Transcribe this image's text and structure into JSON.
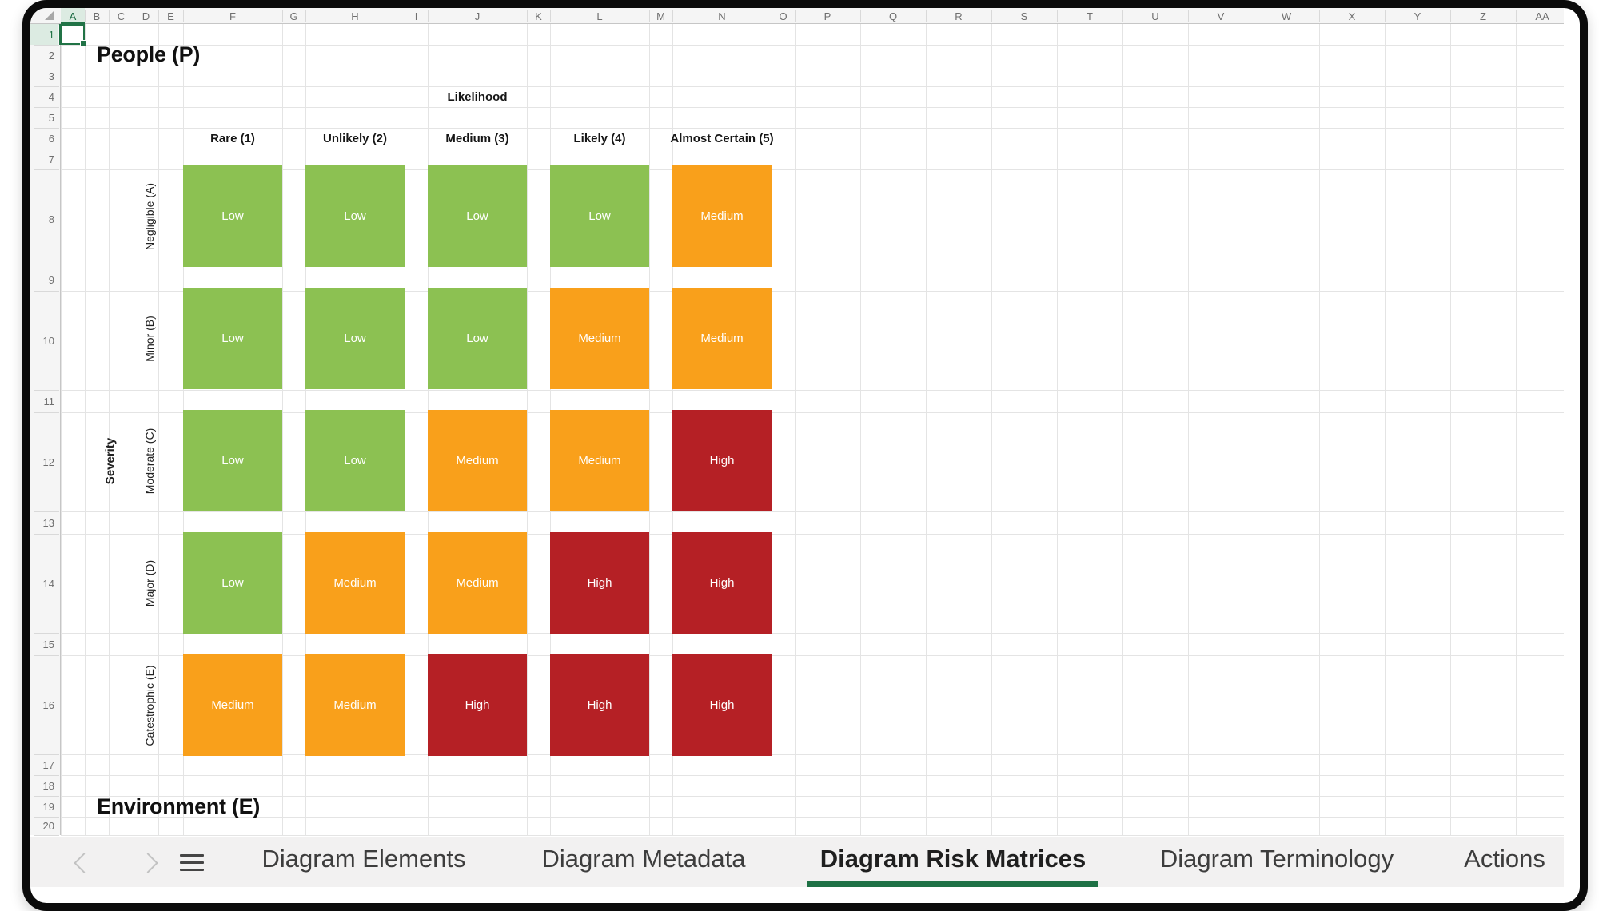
{
  "grid": {
    "column_letters": [
      "A",
      "B",
      "C",
      "D",
      "E",
      "F",
      "G",
      "H",
      "I",
      "J",
      "K",
      "L",
      "M",
      "N",
      "O",
      "P",
      "Q",
      "R",
      "S",
      "T",
      "U",
      "V",
      "W",
      "X",
      "Y",
      "Z",
      "AA"
    ],
    "row_numbers": [
      "1",
      "2",
      "3",
      "4",
      "5",
      "6",
      "7",
      "8",
      "9",
      "10",
      "11",
      "12",
      "13",
      "14",
      "15",
      "16",
      "17",
      "18",
      "19",
      "20"
    ],
    "selected_cell": "A1",
    "selected_column": "A",
    "selected_row": "1"
  },
  "sections": {
    "people": "People (P)",
    "environment": "Environment (E)"
  },
  "matrix": {
    "x_axis_title": "Likelihood",
    "y_axis_title": "Severity",
    "likelihood_levels": [
      "Rare (1)",
      "Unlikely (2)",
      "Medium (3)",
      "Likely (4)",
      "Almost Certain (5)"
    ],
    "severity_levels": [
      "Negligible (A)",
      "Minor (B)",
      "Moderate (C)",
      "Major (D)",
      "Catestrophic (E)"
    ],
    "values": [
      [
        "Low",
        "Low",
        "Low",
        "Low",
        "Medium"
      ],
      [
        "Low",
        "Low",
        "Low",
        "Medium",
        "Medium"
      ],
      [
        "Low",
        "Low",
        "Medium",
        "Medium",
        "High"
      ],
      [
        "Low",
        "Medium",
        "Medium",
        "High",
        "High"
      ],
      [
        "Medium",
        "Medium",
        "High",
        "High",
        "High"
      ]
    ]
  },
  "risk_colors": {
    "Low": "#8CC152",
    "Medium": "#F9A01B",
    "High": "#B52025"
  },
  "tab_bar": {
    "tabs": [
      {
        "label": "Diagram Elements",
        "active": false
      },
      {
        "label": "Diagram Metadata",
        "active": false
      },
      {
        "label": "Diagram Risk Matrices",
        "active": true
      },
      {
        "label": "Diagram Terminology",
        "active": false
      },
      {
        "label": "Actions",
        "active": false
      }
    ],
    "active_tab": "Diagram Risk Matrices"
  },
  "accent": {
    "excel_green": "#1E7145",
    "selection_border": "#217346",
    "selection_tint": "#DCEBE2",
    "header_bg": "#F5F5F5",
    "gridline": "#E4E4E4",
    "tabbar_bg": "#F2F1F1"
  }
}
